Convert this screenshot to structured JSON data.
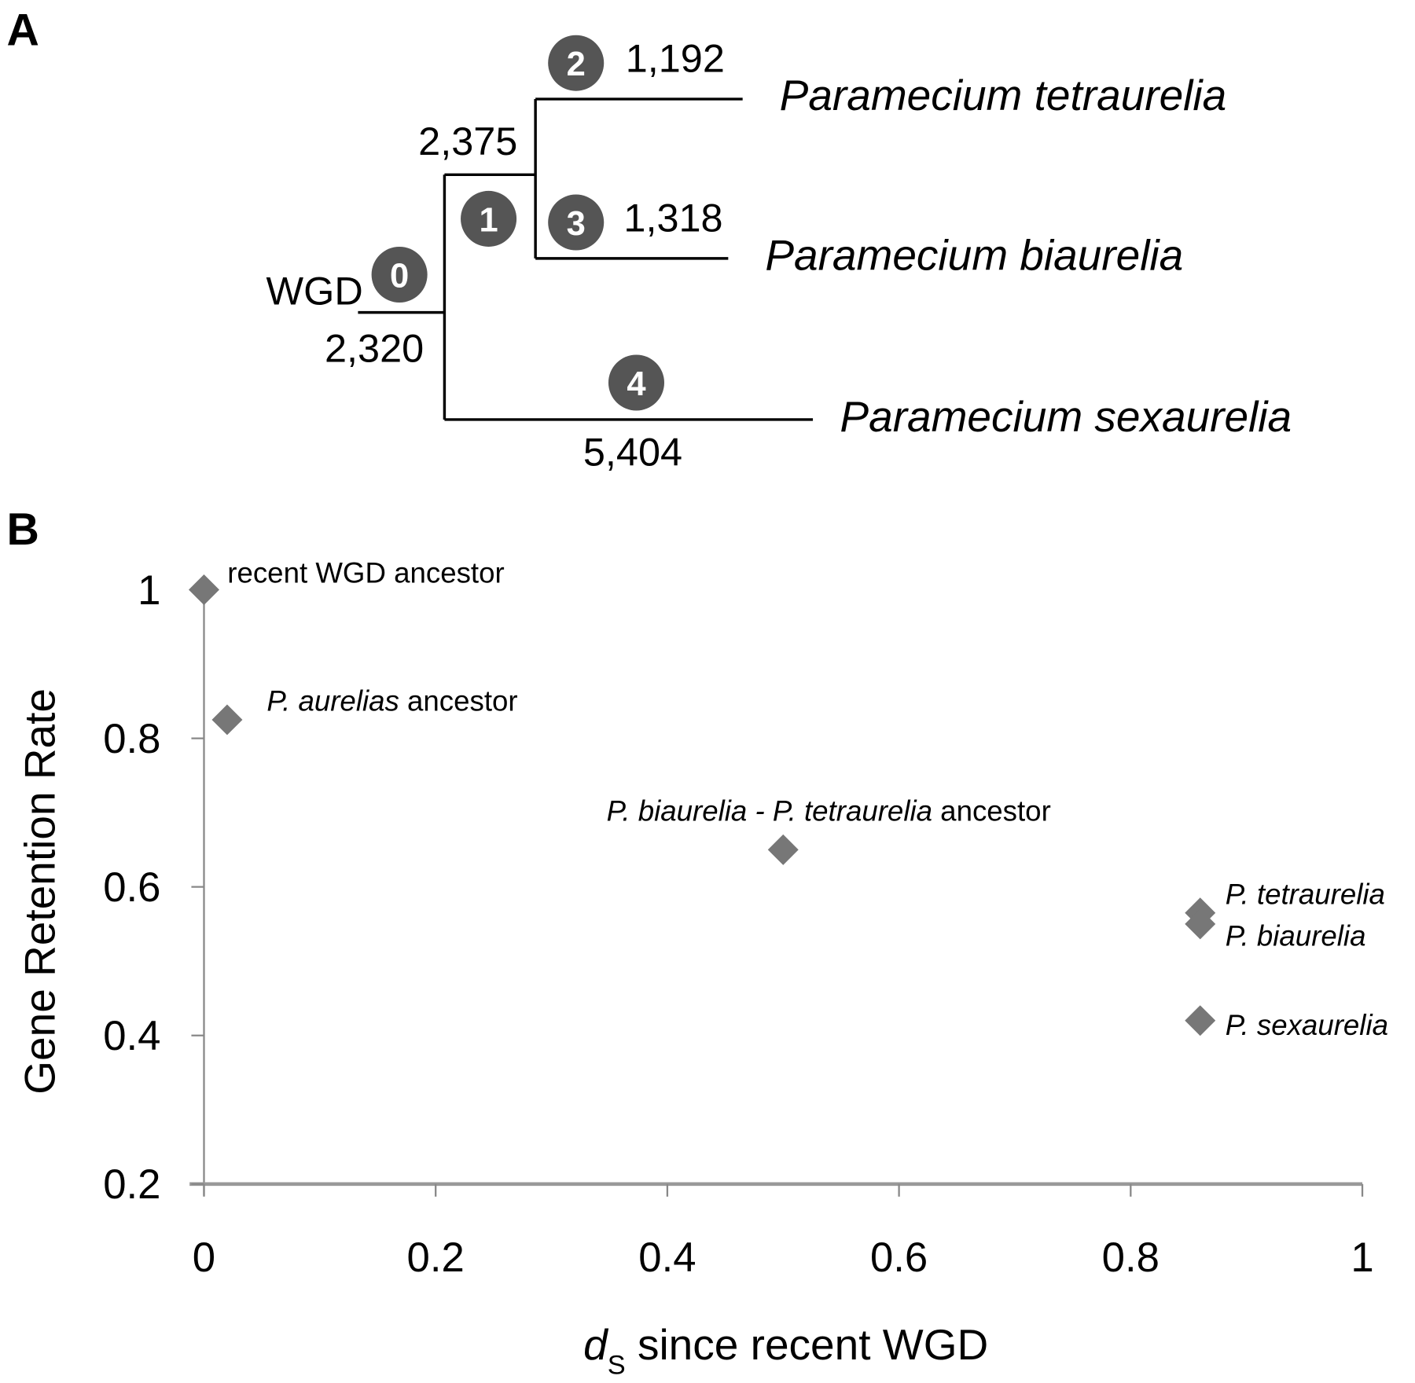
{
  "panel_a": {
    "label": "A",
    "root_label": "WGD",
    "nodes": [
      "0",
      "1",
      "2",
      "3",
      "4"
    ],
    "branch_values": {
      "root": "2,320",
      "internal": "2,375",
      "tetraurelia": "1,192",
      "biaurelia": "1,318",
      "sexaurelia": "5,404"
    },
    "species": [
      "Paramecium tetraurelia",
      "Paramecium biaurelia",
      "Paramecium sexaurelia"
    ]
  },
  "chart_data": {
    "type": "scatter",
    "panel_label": "B",
    "xlabel_main": "d",
    "xlabel_sub": "S",
    "xlabel_rest": " since recent WGD",
    "ylabel": "Gene Retention Rate",
    "xlim": [
      0,
      1
    ],
    "ylim": [
      0.2,
      1
    ],
    "xticks": [
      "0",
      "0.2",
      "0.4",
      "0.6",
      "0.8",
      "1"
    ],
    "yticks": [
      "0.2",
      "0.4",
      "0.6",
      "0.8",
      "1"
    ],
    "grid": false,
    "marker_color": "#777777",
    "points": [
      {
        "x": 0,
        "y": 1.0,
        "label_italic": "",
        "label_rest": "recent WGD ancestor"
      },
      {
        "x": 0.02,
        "y": 0.825,
        "label_italic": "P. aurelias",
        "label_rest": " ancestor"
      },
      {
        "x": 0.5,
        "y": 0.65,
        "label_italic": "P. biaurelia - P. tetraurelia",
        "label_rest": " ancestor"
      },
      {
        "x": 0.86,
        "y": 0.565,
        "label_italic": "P. tetraurelia",
        "label_rest": ""
      },
      {
        "x": 0.86,
        "y": 0.55,
        "label_italic": "P. biaurelia",
        "label_rest": ""
      },
      {
        "x": 0.86,
        "y": 0.42,
        "label_italic": "P. sexaurelia",
        "label_rest": ""
      }
    ]
  }
}
